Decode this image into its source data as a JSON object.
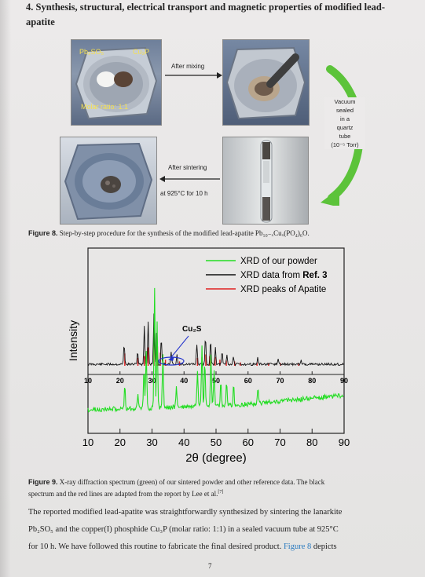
{
  "section": {
    "heading_line1": "4. Synthesis, structural, electrical transport and magnetic properties of modified lead-",
    "heading_line2": "apatite"
  },
  "figure8": {
    "label_pb2so5": "Pb₂SO₅",
    "label_cu3p": "Cu₃P",
    "label_molar": "Molar ratio: 1:1",
    "arrow_after_mixing": "After mixing",
    "vacuum_lines": [
      "Vacuum",
      "sealed",
      "in a",
      "quartz",
      "tube",
      "(10⁻⁵ Torr)"
    ],
    "arrow_after_sintering": "After sintering",
    "arrow_temp": "at 925°C for 10 h",
    "caption_label": "Figure 8.",
    "caption_text": " Step-by-step procedure for the synthesis of the modified lead-apatite Pb₁₀₋ₓCuₓ(PO₄)₆O."
  },
  "figure9": {
    "caption_label": "Figure 9.",
    "caption_line1": " X-ray diffraction spectrum (green) of our sintered powder and other reference data. The black",
    "caption_line2": "spectrum and the red lines are adapted from the report by Lee et al.",
    "caption_ref": "[7]"
  },
  "chart_data": {
    "type": "line",
    "xlabel": "2θ (degree)",
    "ylabel": "Intensity",
    "xlim": [
      10,
      90
    ],
    "x_ticks": [
      "10",
      "20",
      "30",
      "40",
      "50",
      "60",
      "70",
      "80",
      "90"
    ],
    "inner_x_ticks": [
      "10",
      "20",
      "30",
      "40",
      "50",
      "60",
      "70",
      "80",
      "90"
    ],
    "annotation": "Cu₂S",
    "legend_position": "top-right",
    "series": [
      {
        "name": "XRD of our powder",
        "color": "#22dd22",
        "peaks": [
          [
            21.5,
            0.2
          ],
          [
            25.6,
            0.12
          ],
          [
            27.5,
            0.35
          ],
          [
            28.2,
            0.48
          ],
          [
            30.8,
            1.0
          ],
          [
            31.6,
            0.72
          ],
          [
            33.4,
            0.45
          ],
          [
            37.6,
            0.18
          ],
          [
            44.2,
            0.3
          ],
          [
            45.6,
            0.5
          ],
          [
            46.5,
            0.38
          ],
          [
            48.4,
            0.42
          ],
          [
            49.4,
            0.32
          ],
          [
            51.5,
            0.22
          ],
          [
            53.3,
            0.2
          ],
          [
            55.5,
            0.17
          ],
          [
            63.1,
            0.14
          ]
        ]
      },
      {
        "name": "XRD data from Ref. 3",
        "color": "#111111",
        "peaks": [
          [
            21.3,
            0.32
          ],
          [
            25.5,
            0.2
          ],
          [
            27.6,
            0.6
          ],
          [
            28.8,
            0.66
          ],
          [
            30.6,
            0.78
          ],
          [
            31.5,
            0.58
          ],
          [
            32.9,
            0.4
          ],
          [
            36.0,
            0.18
          ],
          [
            37.8,
            0.15
          ],
          [
            44.0,
            0.32
          ],
          [
            46.7,
            0.42
          ],
          [
            48.3,
            0.36
          ],
          [
            49.8,
            0.26
          ],
          [
            51.9,
            0.18
          ],
          [
            53.4,
            0.14
          ],
          [
            55.4,
            0.12
          ],
          [
            63.0,
            0.1
          ],
          [
            69.4,
            0.08
          ],
          [
            76.6,
            0.06
          ]
        ]
      },
      {
        "name": "XRD peaks of Apatite",
        "color": "#e02020",
        "peaks": [
          [
            21.5,
            0.28
          ],
          [
            25.6,
            0.18
          ],
          [
            27.6,
            0.22
          ],
          [
            28.8,
            0.42
          ],
          [
            30.6,
            0.5
          ],
          [
            31.7,
            0.44
          ],
          [
            32.6,
            0.3
          ],
          [
            34.2,
            0.14
          ],
          [
            38.6,
            0.1
          ],
          [
            44.2,
            0.18
          ],
          [
            45.6,
            0.2
          ],
          [
            46.8,
            0.26
          ],
          [
            48.0,
            0.22
          ],
          [
            49.7,
            0.2
          ],
          [
            51.2,
            0.14
          ],
          [
            53.2,
            0.12
          ],
          [
            55.8,
            0.1
          ],
          [
            57.6,
            0.08
          ],
          [
            62.8,
            0.08
          ],
          [
            66.4,
            0.06
          ],
          [
            70.2,
            0.06
          ],
          [
            75.8,
            0.05
          ]
        ]
      }
    ]
  },
  "body": {
    "line1": "The reported modified lead-apatite was straightforwardly synthesized by sintering the lanarkite",
    "line2": "Pb₂SO₅ and the copper(I) phosphide Cu₃P (molar ratio: 1:1) in a sealed vacuum tube at 925°C",
    "line3_before": "for 10 h. We have followed this routine to fabricate the final desired product. ",
    "line3_ref": "Figure 8",
    "line3_after": " depicts"
  },
  "page_number": "7"
}
